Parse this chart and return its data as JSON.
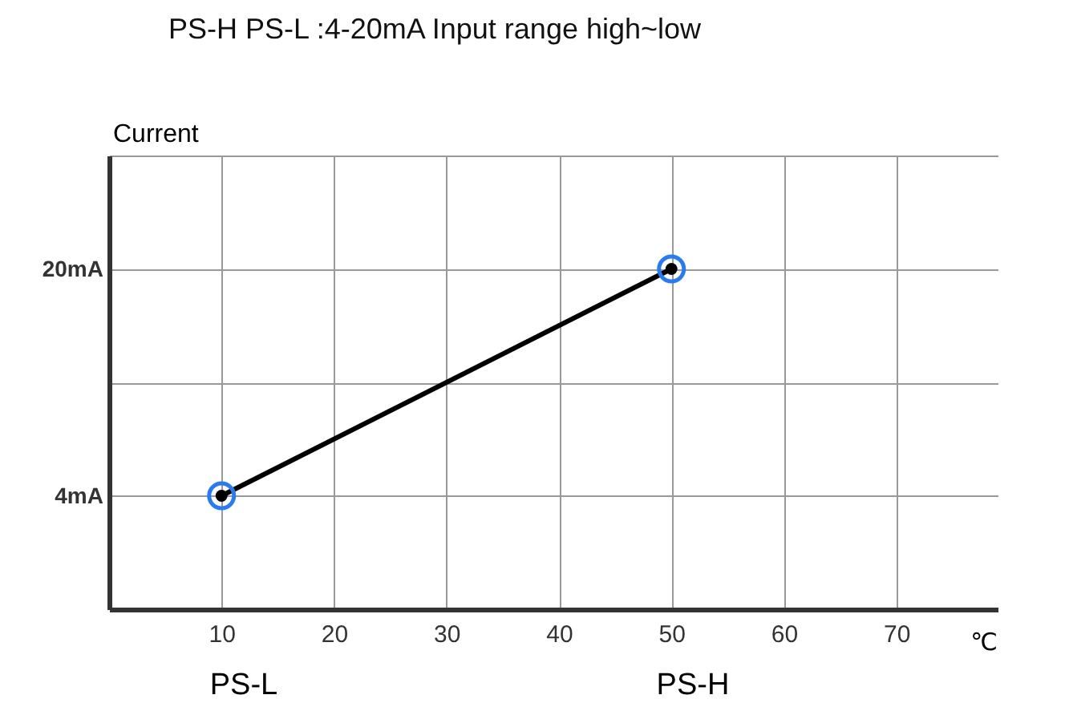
{
  "chart_data": {
    "type": "line",
    "title": "PS-H PS-L :4-20mA  Input range high~low",
    "xlabel": "℃",
    "ylabel": "Current",
    "x": [
      10,
      50
    ],
    "series": [
      {
        "color": "#000000",
        "values": [
          4,
          20
        ]
      }
    ],
    "xlim": [
      0,
      79
    ],
    "xticks": [
      10,
      20,
      30,
      40,
      50,
      60,
      70
    ],
    "ylim": [
      -4,
      28
    ],
    "yticks": [
      {
        "value": 4,
        "label": "4mA"
      },
      {
        "value": 12,
        "label": null
      },
      {
        "value": 20,
        "label": "20mA"
      },
      {
        "value": 28,
        "label": null
      }
    ],
    "grid": true,
    "marker": "circle",
    "line_style": "solid",
    "annotations": [
      "PS-L",
      "PS-H"
    ]
  }
}
